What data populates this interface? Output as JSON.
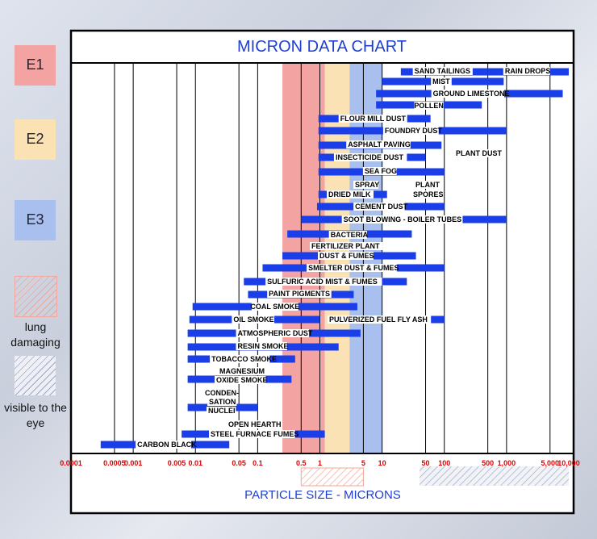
{
  "legend": {
    "e1": {
      "label": "E1",
      "color": "#f4a3a3"
    },
    "e2": {
      "label": "E2",
      "color": "#fbe2b4"
    },
    "e3": {
      "label": "E3",
      "color": "#a9c0ef"
    },
    "lung_caption": "lung damaging",
    "visible_caption": "visible to the eye"
  },
  "chart_data": {
    "type": "range-bar",
    "title": "MICRON DATA CHART",
    "xlabel": "PARTICLE SIZE - MICRONS",
    "xscale": "log",
    "xlim": [
      0.0001,
      10000
    ],
    "tick_values": [
      0.0001,
      0.0005,
      0.001,
      0.005,
      0.01,
      0.05,
      0.1,
      0.5,
      1,
      5,
      10,
      50,
      100,
      500,
      1000,
      5000,
      10000
    ],
    "tick_labels": [
      "0.0001",
      "0.0005",
      "0.001",
      "0.005",
      "0.01",
      "0.05",
      "0.1",
      "0.5",
      "1",
      "5",
      "10",
      "50",
      "100",
      "500",
      "1,000",
      "5,000",
      "10,000"
    ],
    "bands": [
      {
        "name": "E1",
        "range": [
          0.25,
          1.2
        ],
        "color": "#f4a3a3"
      },
      {
        "name": "E2",
        "range": [
          1.2,
          3
        ],
        "color": "#fbe2b4"
      },
      {
        "name": "E3",
        "range": [
          3,
          10
        ],
        "color": "#a9c0ef"
      }
    ],
    "lung_damaging_range": [
      0.5,
      5
    ],
    "visible_range": [
      40,
      10000
    ],
    "bar_color": "#1a3ee8",
    "items": [
      {
        "label": "SAND TAILINGS",
        "range": [
          20,
          500
        ]
      },
      {
        "label": "RAIN DROPS",
        "range": [
          500,
          10000
        ]
      },
      {
        "label": "MIST",
        "range": [
          10,
          900
        ]
      },
      {
        "label": "GROUND LIMESTONE",
        "range": [
          8,
          8000
        ]
      },
      {
        "label": "POLLEN",
        "range": [
          8,
          400
        ]
      },
      {
        "label": "FLOUR MILL DUST",
        "range": [
          0.95,
          60
        ]
      },
      {
        "label": "FOUNDRY DUST",
        "range": [
          0.95,
          1000
        ]
      },
      {
        "label": "ASPHALT PAVING",
        "range": [
          0.95,
          90
        ]
      },
      {
        "label": "PLANT DUST",
        "range": []
      },
      {
        "label": "INSECTICIDE DUST",
        "range": [
          0.95,
          50
        ]
      },
      {
        "label": "SEA FOG",
        "range": [
          0.95,
          100
        ]
      },
      {
        "label": "SPRAY DRIED MILK",
        "range": [
          0.95,
          12
        ]
      },
      {
        "label": "PLANT SPORES",
        "range": []
      },
      {
        "label": "CEMENT DUST",
        "range": [
          0.9,
          100
        ]
      },
      {
        "label": "SOOT BLOWING - BOILER TUBES",
        "range": [
          0.5,
          1000
        ]
      },
      {
        "label": "BACTERIA",
        "range": [
          0.3,
          30
        ]
      },
      {
        "label": "FERTILIZER PLANT DUST & FUMES",
        "range": [
          0.25,
          35
        ]
      },
      {
        "label": "SMELTER DUST & FUMES",
        "range": [
          0.12,
          100
        ]
      },
      {
        "label": "SULFURIC ACID MIST & FUMES",
        "range": [
          0.06,
          25
        ]
      },
      {
        "label": "PAINT PIGMENTS",
        "range": [
          0.07,
          3.5
        ]
      },
      {
        "label": "COAL SMOKE",
        "range": [
          0.009,
          4
        ]
      },
      {
        "label": "OIL SMOKE",
        "range": [
          0.008,
          1
        ]
      },
      {
        "label": "PULVERIZED FUEL FLY ASH",
        "range": [
          3,
          100
        ]
      },
      {
        "label": "ATMOSPHERIC DUST",
        "range": [
          0.0075,
          4.5
        ]
      },
      {
        "label": "RESIN SMOKE",
        "range": [
          0.0075,
          2
        ]
      },
      {
        "label": "TOBACCO SMOKE",
        "range": [
          0.0075,
          0.4
        ]
      },
      {
        "label": "MAGNESIUM OXIDE SMOKE",
        "range": [
          0.0075,
          0.35
        ]
      },
      {
        "label": "CONDEN- SATION NUCLEI",
        "range": [
          0.0075,
          0.1
        ]
      },
      {
        "label": "OPEN HEARTH STEEL FURNACE FUMES",
        "range": [
          0.006,
          1.2
        ]
      },
      {
        "label": "CARBON BLACK",
        "range": [
          0.0003,
          0.035
        ]
      }
    ]
  }
}
